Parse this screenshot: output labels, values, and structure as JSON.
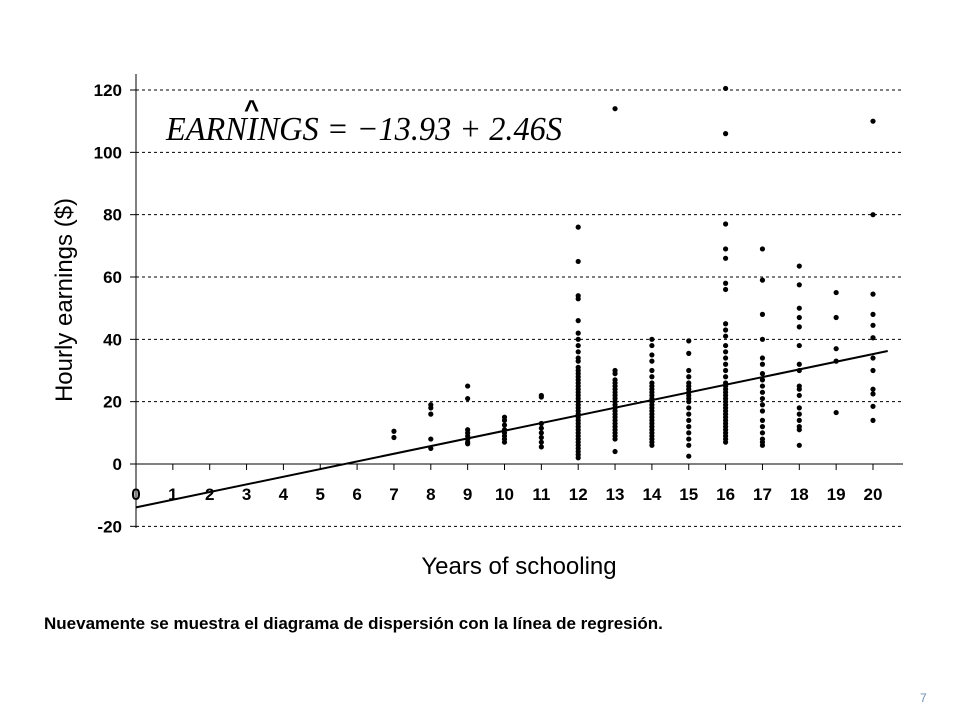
{
  "chart_data": {
    "type": "scatter",
    "xlabel": "Years of schooling",
    "ylabel": "Hourly earnings ($)",
    "xlim": [
      0,
      20
    ],
    "ylim": [
      -20,
      120
    ],
    "x_ticks": [
      "0",
      "1",
      "2",
      "3",
      "4",
      "5",
      "6",
      "7",
      "8",
      "9",
      "10",
      "11",
      "12",
      "13",
      "14",
      "15",
      "16",
      "17",
      "18",
      "19",
      "20"
    ],
    "y_ticks": [
      "-20",
      "0",
      "20",
      "40",
      "60",
      "80",
      "100",
      "120"
    ],
    "grid": "horizontal dashed",
    "equation": {
      "text": "EARNINGS = −13.93 + 2.46S",
      "hat": "^",
      "intercept": -13.93,
      "slope": 2.46
    },
    "regression_line": {
      "x": [
        0,
        20.4
      ],
      "y": [
        -13.93,
        36.25
      ]
    },
    "points": [
      {
        "x": 7,
        "y": [
          10.5,
          8.5
        ]
      },
      {
        "x": 8,
        "y": [
          19,
          18,
          16,
          8,
          5
        ]
      },
      {
        "x": 9,
        "y": [
          25,
          21,
          11,
          10,
          9,
          8,
          7,
          6.5
        ]
      },
      {
        "x": 10,
        "y": [
          15,
          14,
          12.5,
          11,
          10,
          9,
          8,
          7
        ]
      },
      {
        "x": 11,
        "y": [
          22,
          21.5,
          13,
          11.5,
          10,
          8.5,
          7,
          5.5
        ]
      },
      {
        "x": 12,
        "y": [
          76,
          65,
          54,
          53,
          46,
          42,
          40,
          38,
          36,
          34,
          33,
          31,
          30,
          29,
          28,
          27,
          26,
          25,
          24,
          23,
          22,
          21,
          20,
          19,
          18,
          17,
          16,
          15,
          14,
          13,
          12,
          11,
          10,
          9,
          8,
          7,
          6,
          5,
          4,
          3,
          2
        ]
      },
      {
        "x": 13,
        "y": [
          114,
          30,
          29,
          27,
          26,
          25,
          24,
          23,
          22,
          21,
          20,
          19,
          18,
          17,
          16,
          15,
          14,
          13,
          12,
          11,
          10,
          9,
          8,
          4
        ]
      },
      {
        "x": 14,
        "y": [
          40,
          38,
          35,
          33,
          30,
          28,
          26,
          25,
          24,
          23,
          22,
          21,
          20,
          19,
          18,
          17,
          16,
          15,
          14,
          13,
          12,
          11,
          10,
          9,
          8,
          7,
          6
        ]
      },
      {
        "x": 15,
        "y": [
          39.5,
          35.5,
          30,
          28,
          26,
          25,
          24,
          23,
          22,
          21,
          20,
          18,
          16,
          14,
          12,
          10,
          8,
          6,
          2.5
        ]
      },
      {
        "x": 16,
        "y": [
          120.5,
          106,
          77,
          69,
          66,
          58,
          56,
          45,
          43,
          41,
          38,
          36,
          34,
          32,
          30,
          28,
          26,
          25,
          24,
          23,
          22,
          21,
          20,
          19,
          18,
          17,
          16,
          15,
          14,
          13,
          12,
          11,
          10,
          9,
          8,
          7
        ]
      },
      {
        "x": 17,
        "y": [
          69,
          59,
          48,
          40,
          34,
          32,
          29,
          27,
          25,
          23,
          21,
          19,
          17,
          14,
          12,
          10,
          8,
          7,
          6
        ]
      },
      {
        "x": 18,
        "y": [
          63.5,
          57.5,
          50,
          47,
          44,
          38,
          32,
          30,
          25,
          24,
          22,
          18,
          16,
          14,
          12,
          11,
          6
        ]
      },
      {
        "x": 19,
        "y": [
          55,
          47,
          37,
          33,
          16.5
        ]
      },
      {
        "x": 20,
        "y": [
          110,
          80,
          54.5,
          48,
          44.5,
          40.5,
          34,
          30,
          24,
          22.5,
          18.5,
          14
        ]
      }
    ]
  },
  "caption": "Nuevamente se muestra el diagrama de dispersión con la línea de regresión.",
  "page_number": "7"
}
